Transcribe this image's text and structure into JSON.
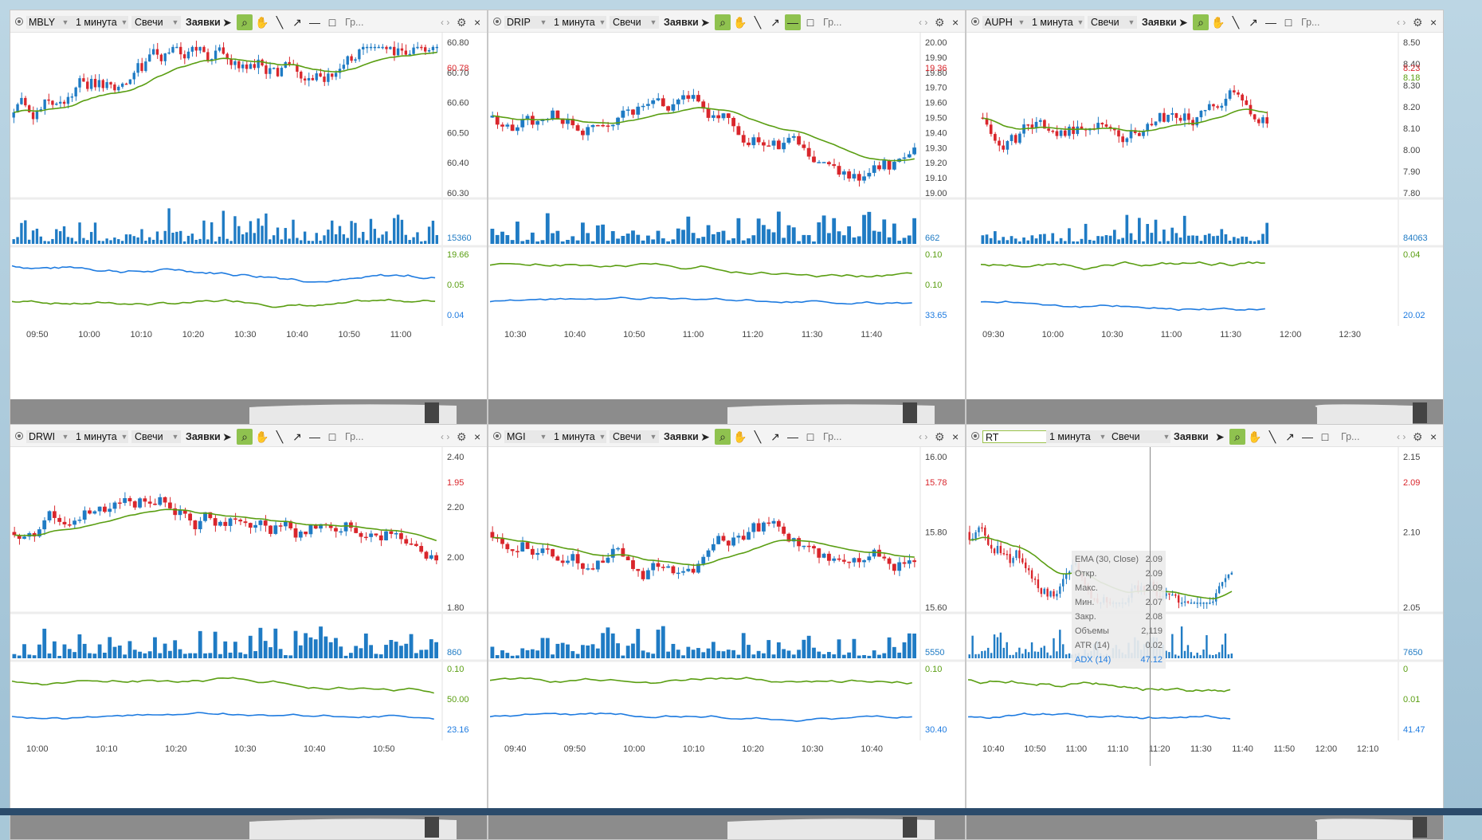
{
  "toolbar": {
    "timeframe": "1 минута",
    "chart_type": "Свечи",
    "orders_label": "Заявки",
    "chart_label": "Гр..."
  },
  "panels": [
    {
      "ticker": "MBLY",
      "price_labels": [
        "60.80",
        "60.70",
        "60.60",
        "60.50",
        "60.40",
        "60.30"
      ],
      "last": "60.78",
      "vol_label": "15360",
      "ind_labels": [
        "19.66",
        "0.05",
        "0.04"
      ],
      "times": [
        "09:50",
        "10:00",
        "10:10",
        "10:20",
        "10:30",
        "10:40",
        "10:50",
        "11:00"
      ]
    },
    {
      "ticker": "DRIP",
      "price_labels": [
        "20.00",
        "19.90",
        "19.80",
        "19.70",
        "19.60",
        "19.50",
        "19.40",
        "19.30",
        "19.20",
        "19.10",
        "19.00"
      ],
      "last": "19.36",
      "vol_label": "662",
      "ind_labels": [
        "0.10",
        "0.10",
        "33.65"
      ],
      "times": [
        "10:30",
        "10:40",
        "10:50",
        "11:00",
        "11:20",
        "11:30",
        "11:40"
      ]
    },
    {
      "ticker": "AUPH",
      "price_labels": [
        "8.50",
        "8.40",
        "8.30",
        "8.20",
        "8.10",
        "8.00",
        "7.90",
        "7.80"
      ],
      "last": "8.23",
      "last2": "8.18",
      "vol_label": "84063",
      "ind_labels": [
        "0.04",
        "20.02"
      ],
      "times": [
        "09:30",
        "10:00",
        "10:30",
        "11:00",
        "11:30",
        "12:00",
        "12:30"
      ]
    },
    {
      "ticker": "DRWI",
      "price_labels": [
        "2.40",
        "2.20",
        "2.00",
        "1.80"
      ],
      "last": "1.95",
      "vol_label": "860",
      "ind_labels": [
        "0.10",
        "50.00",
        "23.16"
      ],
      "times": [
        "10:00",
        "10:10",
        "10:20",
        "10:30",
        "10:40",
        "10:50"
      ]
    },
    {
      "ticker": "MGI",
      "price_labels": [
        "16.00",
        "15.80",
        "15.60"
      ],
      "last": "15.78",
      "vol_label": "5550",
      "ind_labels": [
        "0.10",
        "30.40"
      ],
      "times": [
        "09:40",
        "09:50",
        "10:00",
        "10:10",
        "10:20",
        "10:30",
        "10:40"
      ]
    },
    {
      "ticker": "RT",
      "price_labels": [
        "2.15",
        "2.10",
        "2.05"
      ],
      "last": "2.09",
      "vol_label": "7650",
      "ind_labels": [
        "0",
        "0.01",
        "41.47"
      ],
      "times": [
        "10:40",
        "10:50",
        "11:00",
        "11:10",
        "11:20",
        "11:30",
        "11:40",
        "11:50",
        "12:00",
        "12:10"
      ]
    }
  ],
  "tooltip": {
    "rows": [
      {
        "label": "EMA (30, Close)",
        "value": "2.09"
      },
      {
        "label": "Откр.",
        "value": "2.09"
      },
      {
        "label": "Макс.",
        "value": "2.09"
      },
      {
        "label": "Мин.",
        "value": "2.07"
      },
      {
        "label": "Закр.",
        "value": "2.08"
      },
      {
        "label": "Объемы",
        "value": "2,119"
      },
      {
        "label": "ATR (14)",
        "value": "0.02"
      },
      {
        "label": "ADX (14)",
        "value": "47.12"
      }
    ]
  },
  "colors": {
    "up": "#1f7bc4",
    "down": "#d9262c",
    "ema": "#5a9e12",
    "adx": "#1e7be0",
    "atr": "#5a9e12",
    "vol": "#1f7bc4"
  }
}
